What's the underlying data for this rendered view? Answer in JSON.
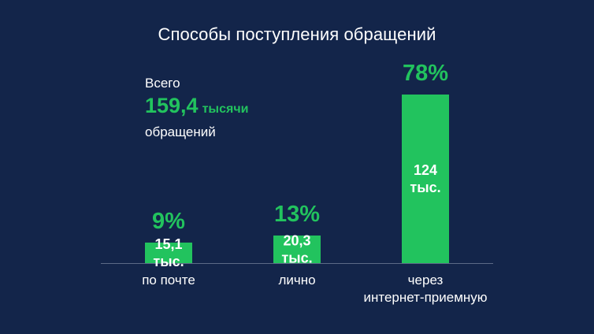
{
  "colors": {
    "background": "#13254a",
    "accent": "#22c35e",
    "text": "#ffffff",
    "axis": "#5c6a86"
  },
  "total": {
    "prefix": "Всего",
    "value": "159,4",
    "unit": "тысячи",
    "suffix": "обращений"
  },
  "chart_data": {
    "type": "bar",
    "title": "Способы поступления обращений",
    "categories": [
      [
        "по почте"
      ],
      [
        "лично"
      ],
      [
        "через",
        "интернет-приемную"
      ]
    ],
    "values": [
      15.1,
      20.3,
      124
    ],
    "value_labels": [
      [
        "15,1",
        "тыс."
      ],
      [
        "20,3",
        "тыс."
      ],
      [
        "124",
        "тыс."
      ]
    ],
    "percent_labels": [
      "9%",
      "13%",
      "78%"
    ],
    "unit": "тыс.",
    "xlabel": "",
    "ylabel": "",
    "ylim": [
      0,
      159.4
    ]
  }
}
